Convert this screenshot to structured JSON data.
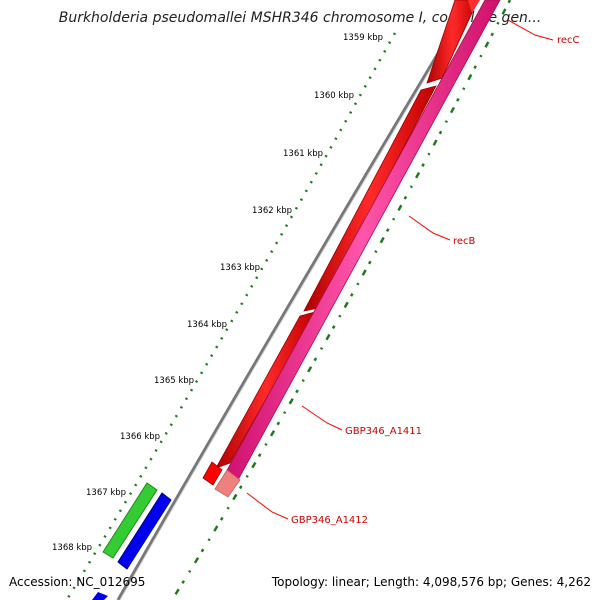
{
  "header": {
    "title": "Burkholderia pseudomallei MSHR346 chromosome I, complete gen..."
  },
  "footer": {
    "accession": "Accession: NC_012695",
    "summary": "Topology: linear; Length: 4,098,576 bp; Genes: 4,262"
  },
  "ruler": {
    "ticks": [
      "1359 kbp",
      "1360 kbp",
      "1361 kbp",
      "1362 kbp",
      "1363 kbp",
      "1364 kbp",
      "1365 kbp",
      "1366 kbp",
      "1367 kbp",
      "1368 kbp"
    ]
  },
  "genes": [
    {
      "label": "recC",
      "color": "#ff0000"
    },
    {
      "label": "recB",
      "color": "#ff0000"
    },
    {
      "label": "GBP346_A1411",
      "color": "#ff0000"
    },
    {
      "label": "GBP346_A1412",
      "color": "#ff0000"
    }
  ],
  "colors": {
    "forward_gene": "#ff0000",
    "reverse_gene": "#ff1493",
    "green_feature": "#33cc33",
    "blue_feature": "#0000ee",
    "backbone": "#808080",
    "gc_marks": "#006400",
    "label_text": "#cc0000"
  }
}
